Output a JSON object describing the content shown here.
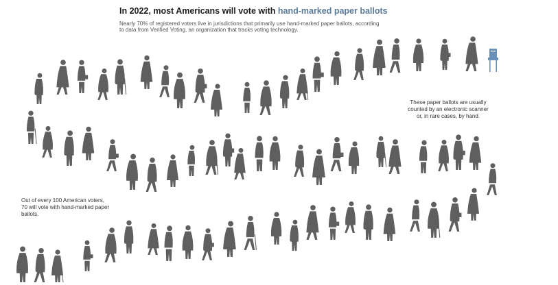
{
  "header": {
    "title_prefix": "In 2022, most Americans will vote with ",
    "title_highlight": "hand-marked paper ballots",
    "subtitle": "Nearly 70% of registered voters live in jurisdictions that primarily use hand-marked paper ballots, according to data from Verified Voting, an organization that tracks voting technology."
  },
  "annotations": {
    "counting_note": "These paper ballots are usually counted by an electronic scanner or, in rare cases, by hand.",
    "share_note": "Out of every 100 American voters, 70 will vote with hand-marked paper ballots."
  },
  "colors": {
    "highlight": "#5a7a99",
    "figure": "#5f5f5f",
    "ballot_box": "#6a8fb8"
  },
  "icons": {
    "voter": "person-silhouette-icon",
    "ballot_box": "ballot-box-icon"
  }
}
